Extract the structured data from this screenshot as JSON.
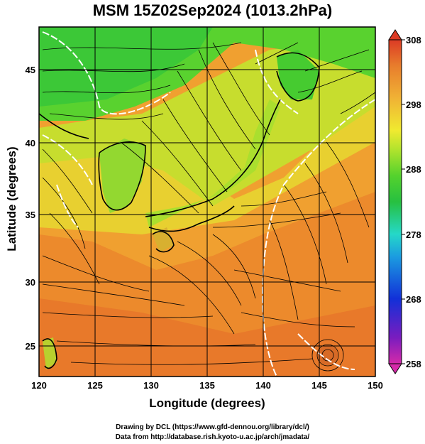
{
  "title": "MSM 15Z02Sep2024 (1013.2hPa)",
  "x_axis": {
    "label": "Longitude (degrees)",
    "ticks": [
      "120",
      "125",
      "130",
      "135",
      "140",
      "145",
      "150"
    ],
    "range": [
      120,
      150
    ]
  },
  "y_axis": {
    "label": "Latitude  (degrees)",
    "ticks": [
      "25",
      "30",
      "35",
      "40",
      "45"
    ],
    "range": [
      22.4,
      47.6
    ]
  },
  "colorbar": {
    "ticks": [
      "308",
      "298",
      "288",
      "278",
      "268",
      "258"
    ],
    "range": [
      258,
      308
    ],
    "colors": [
      "#d52aa9",
      "#6a1bc0",
      "#1230d8",
      "#1b9be0",
      "#25d8c8",
      "#27c040",
      "#54d22d",
      "#b0e32d",
      "#f0ea30",
      "#f0b235",
      "#e87d2c",
      "#dc3b25"
    ]
  },
  "credits": {
    "line1": "Drawing by DCL (https://www.gfd-dennou.org/library/dcl/)",
    "line2": "Data from http://database.rish.kyoto-u.ac.jp/arch/jmadata/"
  }
}
